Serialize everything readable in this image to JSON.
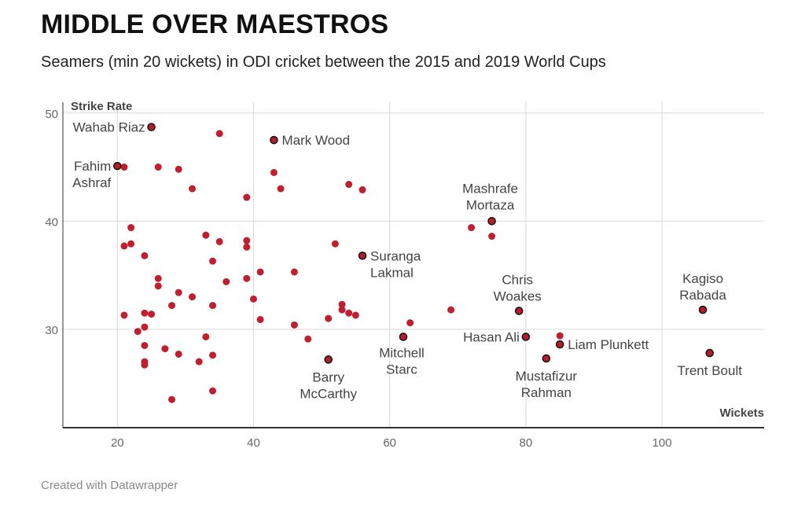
{
  "header": {
    "title": "MIDDLE OVER MAESTROS",
    "subtitle": "Seamers (min 20 wickets) in ODI cricket between the 2015 and 2019 World Cups"
  },
  "footer": {
    "credit": "Created with Datawrapper"
  },
  "colors": {
    "point": "#c0202e",
    "highlight": "#b81c28",
    "highlight_stroke": "#1a1a1a",
    "grid": "#d9d9d9",
    "axis": "#333333"
  },
  "chart_data": {
    "type": "scatter",
    "title": "MIDDLE OVER MAESTROS",
    "subtitle": "Seamers (min 20 wickets) in ODI cricket between the 2015 and 2019 World Cups",
    "xlabel": "Wickets",
    "ylabel": "Strike Rate",
    "xlim": [
      12,
      115
    ],
    "ylim": [
      20.9,
      51
    ],
    "xticks": [
      20,
      40,
      60,
      80,
      100
    ],
    "yticks": [
      30,
      40,
      50
    ],
    "grid": true,
    "points": [
      {
        "x": 35,
        "y": 48.1
      },
      {
        "x": 21,
        "y": 45.0
      },
      {
        "x": 26,
        "y": 45.0
      },
      {
        "x": 29,
        "y": 44.8
      },
      {
        "x": 43,
        "y": 44.5
      },
      {
        "x": 31,
        "y": 43.0
      },
      {
        "x": 44,
        "y": 43.0
      },
      {
        "x": 54,
        "y": 43.4
      },
      {
        "x": 56,
        "y": 42.9
      },
      {
        "x": 39,
        "y": 42.2
      },
      {
        "x": 22,
        "y": 39.4
      },
      {
        "x": 72,
        "y": 39.4
      },
      {
        "x": 75,
        "y": 38.6
      },
      {
        "x": 33,
        "y": 38.7
      },
      {
        "x": 35,
        "y": 38.1
      },
      {
        "x": 39,
        "y": 38.2
      },
      {
        "x": 39,
        "y": 37.6
      },
      {
        "x": 22,
        "y": 37.9
      },
      {
        "x": 21,
        "y": 37.7
      },
      {
        "x": 52,
        "y": 37.9
      },
      {
        "x": 24,
        "y": 36.8
      },
      {
        "x": 34,
        "y": 36.3
      },
      {
        "x": 41,
        "y": 35.3
      },
      {
        "x": 46,
        "y": 35.3
      },
      {
        "x": 26,
        "y": 34.7
      },
      {
        "x": 36,
        "y": 34.4
      },
      {
        "x": 39,
        "y": 34.7
      },
      {
        "x": 26,
        "y": 34.0
      },
      {
        "x": 29,
        "y": 33.4
      },
      {
        "x": 31,
        "y": 33.0
      },
      {
        "x": 40,
        "y": 32.8
      },
      {
        "x": 28,
        "y": 32.2
      },
      {
        "x": 34,
        "y": 32.2
      },
      {
        "x": 53,
        "y": 32.3
      },
      {
        "x": 53,
        "y": 31.8
      },
      {
        "x": 54,
        "y": 31.5
      },
      {
        "x": 55,
        "y": 31.3
      },
      {
        "x": 69,
        "y": 31.8
      },
      {
        "x": 21,
        "y": 31.3
      },
      {
        "x": 24,
        "y": 31.5
      },
      {
        "x": 25,
        "y": 31.4
      },
      {
        "x": 41,
        "y": 30.9
      },
      {
        "x": 51,
        "y": 31.0
      },
      {
        "x": 24,
        "y": 30.2
      },
      {
        "x": 46,
        "y": 30.4
      },
      {
        "x": 63,
        "y": 30.6
      },
      {
        "x": 23,
        "y": 29.8
      },
      {
        "x": 33,
        "y": 29.3
      },
      {
        "x": 48,
        "y": 29.1
      },
      {
        "x": 85,
        "y": 29.4
      },
      {
        "x": 24,
        "y": 28.5
      },
      {
        "x": 27,
        "y": 28.2
      },
      {
        "x": 29,
        "y": 27.7
      },
      {
        "x": 34,
        "y": 27.6
      },
      {
        "x": 24,
        "y": 27.0
      },
      {
        "x": 24,
        "y": 26.7
      },
      {
        "x": 32,
        "y": 27.0
      },
      {
        "x": 34,
        "y": 24.3
      },
      {
        "x": 28,
        "y": 23.5
      }
    ],
    "highlighted": [
      {
        "name": "Wahab Riaz",
        "x": 25,
        "y": 48.7
      },
      {
        "name": "Mark Wood",
        "x": 43,
        "y": 47.5
      },
      {
        "name": "Fahim Ashraf",
        "x": 20,
        "y": 45.1
      },
      {
        "name": "Mashrafe Mortaza",
        "x": 75,
        "y": 40.0
      },
      {
        "name": "Suranga Lakmal",
        "x": 56,
        "y": 36.8
      },
      {
        "name": "Chris Woakes",
        "x": 79,
        "y": 31.7
      },
      {
        "name": "Kagiso Rabada",
        "x": 106,
        "y": 31.8
      },
      {
        "name": "Hasan Ali",
        "x": 80,
        "y": 29.3
      },
      {
        "name": "Mitchell Starc",
        "x": 62,
        "y": 29.3
      },
      {
        "name": "Liam Plunkett",
        "x": 85,
        "y": 28.6
      },
      {
        "name": "Trent Boult",
        "x": 107,
        "y": 27.8
      },
      {
        "name": "Barry McCarthy",
        "x": 51,
        "y": 27.2
      },
      {
        "name": "Mustafizur Rahman",
        "x": 83,
        "y": 27.3
      }
    ]
  }
}
